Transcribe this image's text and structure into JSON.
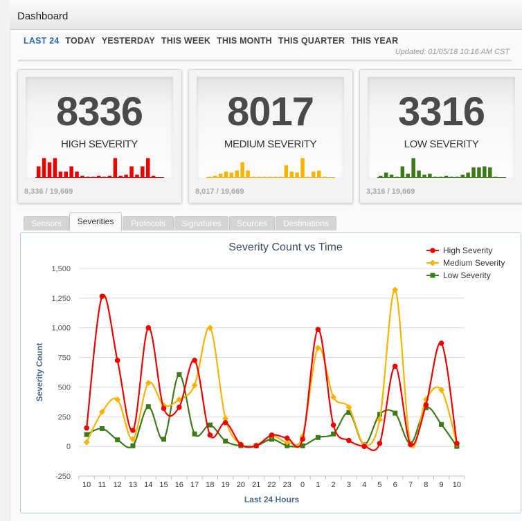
{
  "header": {
    "title": "Dashboard"
  },
  "periods": [
    "LAST 24",
    "TODAY",
    "YESTERDAY",
    "THIS WEEK",
    "THIS MONTH",
    "THIS QUARTER",
    "THIS YEAR"
  ],
  "active_period": 0,
  "updated": "Updated: 01/05/18 10:16 AM CST",
  "cards": [
    {
      "count": "8336",
      "label": "HIGH SEVERITY",
      "ratio": "8,336 / 19,669",
      "color": "#ee0000",
      "spark": [
        0.55,
        0.95,
        0.75,
        0.95,
        0.3,
        0.3,
        0.55,
        0.3,
        0.1,
        0.05,
        0.05,
        0.1,
        0.05,
        0.1,
        0.95,
        0.1,
        0.15,
        0.55,
        0.15,
        0.55,
        0.95,
        0.1
      ]
    },
    {
      "count": "8017",
      "label": "MEDIUM SEVERITY",
      "ratio": "8,017 / 19,669",
      "color": "#f5b400",
      "spark": [
        0.05,
        0.1,
        0.2,
        0.3,
        0.25,
        0.35,
        0.75,
        0.35,
        0.05,
        0.05,
        0.05,
        0.05,
        0.05,
        0.05,
        0.6,
        0.3,
        0.25,
        0.95,
        0.05,
        0.3,
        0.35,
        0.05
      ]
    },
    {
      "count": "3316",
      "label": "LOW SEVERITY",
      "ratio": "3,316 / 19,669",
      "color": "#3d7a1a",
      "spark": [
        0.1,
        0.25,
        0.15,
        0.05,
        0.55,
        0.2,
        0.95,
        0.35,
        0.15,
        0.2,
        0.05,
        0.05,
        0.1,
        0.05,
        0.05,
        0.15,
        0.25,
        0.5,
        0.5,
        0.55,
        0.5,
        0.05
      ]
    }
  ],
  "tabs": [
    "Sensors",
    "Severities",
    "Protocols",
    "Signatures",
    "Sources",
    "Destinations"
  ],
  "active_tab": 1,
  "chart_data": {
    "type": "line",
    "title": "Severity Count vs Time",
    "xlabel": "Last 24 Hours",
    "ylabel": "Severity Count",
    "categories": [
      "10",
      "11",
      "12",
      "13",
      "14",
      "15",
      "16",
      "17",
      "18",
      "19",
      "20",
      "21",
      "22",
      "23",
      "0",
      "1",
      "2",
      "3",
      "4",
      "5",
      "6",
      "7",
      "8",
      "9",
      "10"
    ],
    "ylim": [
      -250,
      1500
    ],
    "yticks": [
      -250,
      0,
      250,
      500,
      750,
      1000,
      1250,
      1500
    ],
    "ytick_labels": [
      "-250",
      "0",
      "250",
      "500",
      "750",
      "1,000",
      "1,250",
      "1,500"
    ],
    "legend_position": "top-right",
    "grid": true,
    "series": [
      {
        "name": "High Severity",
        "color": "#ee0000",
        "marker": "circle",
        "values": [
          155,
          1265,
          725,
          135,
          1000,
          320,
          330,
          725,
          95,
          200,
          15,
          5,
          95,
          70,
          60,
          985,
          180,
          50,
          0,
          25,
          675,
          15,
          350,
          870,
          25
        ]
      },
      {
        "name": "Medium Severity",
        "color": "#f5b400",
        "marker": "diamond",
        "values": [
          35,
          290,
          395,
          60,
          535,
          345,
          395,
          515,
          1000,
          235,
          15,
          10,
          90,
          35,
          85,
          830,
          415,
          330,
          15,
          225,
          1320,
          20,
          395,
          475,
          20
        ]
      },
      {
        "name": "Low Severity",
        "color": "#3d7a1a",
        "marker": "square",
        "values": [
          100,
          150,
          55,
          5,
          335,
          60,
          605,
          105,
          180,
          45,
          5,
          5,
          60,
          5,
          5,
          75,
          105,
          285,
          15,
          270,
          280,
          25,
          325,
          185,
          0
        ]
      }
    ]
  }
}
